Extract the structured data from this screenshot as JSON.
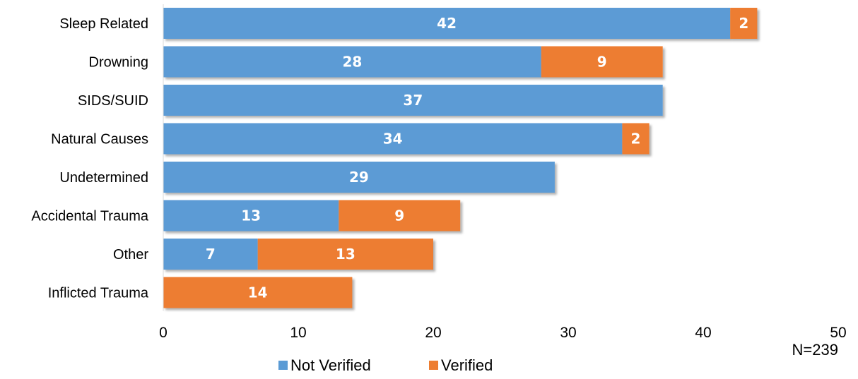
{
  "chart_data": {
    "type": "bar",
    "orientation": "horizontal",
    "stacked": true,
    "title": "",
    "xlabel": "",
    "ylabel": "",
    "categories": [
      "Sleep Related",
      "Drowning",
      "SIDS/SUID",
      "Natural Causes",
      "Undetermined",
      "Accidental Trauma",
      "Other",
      "Inflicted Trauma"
    ],
    "series": [
      {
        "name": "Not Verified",
        "color": "#5B9BD5",
        "values": [
          42,
          28,
          37,
          34,
          29,
          13,
          7,
          0
        ]
      },
      {
        "name": "Verified",
        "color": "#ED7D31",
        "values": [
          2,
          9,
          0,
          2,
          0,
          9,
          13,
          14
        ]
      }
    ],
    "xlim": [
      0,
      50
    ],
    "xticks": [
      "0",
      "10",
      "20",
      "30",
      "40",
      "50"
    ],
    "grid": false,
    "legend_position": "bottom",
    "data_labels": true,
    "note": "N=239"
  }
}
